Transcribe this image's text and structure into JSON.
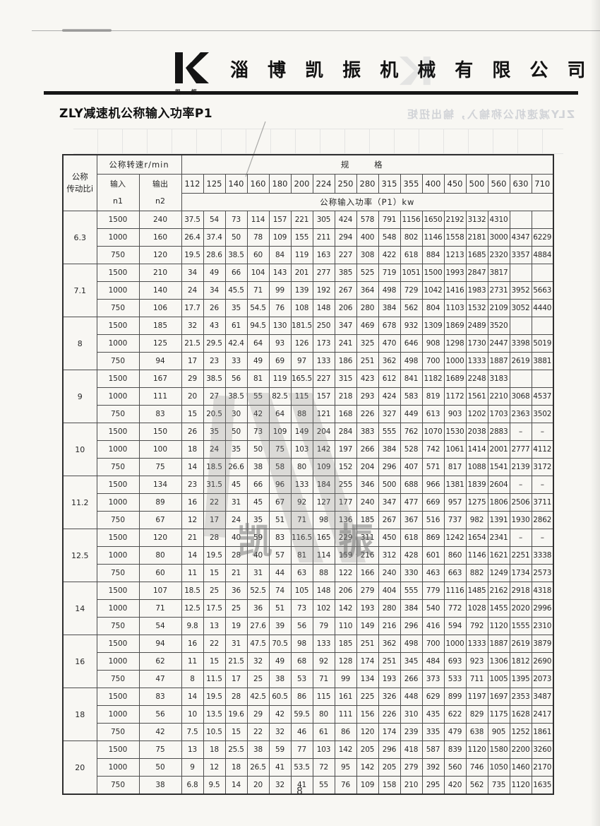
{
  "page": {
    "company_name": "淄 博 凯 振 机 械 有 限 公 司",
    "logo_caption": "凯 振",
    "title": "ZLY减速机公称输入功率P1",
    "ghost_title": "ZLY减速机公称输入，输出扭矩",
    "watermark_text": "凯 振",
    "page_number": "8",
    "colors": {
      "paper": "#f8f7f3",
      "ink": "#262626",
      "rule": "#161616",
      "watermark_grey": "#8a8a8a"
    }
  },
  "table": {
    "header": {
      "ratio_label_line1": "公称",
      "ratio_label_line2": "传动比i",
      "speed_label": "公称转速r/min",
      "spec_label": "规 格",
      "input_label": "输入",
      "input_sub": "n1",
      "output_label": "输出",
      "output_sub": "n2",
      "power_label": "公称输入功率（P1）kw",
      "sizes": [
        "112",
        "125",
        "140",
        "160",
        "180",
        "200",
        "224",
        "250",
        "280",
        "315",
        "355",
        "400",
        "450",
        "500",
        "560",
        "630",
        "710"
      ]
    },
    "blocks": [
      {
        "ratio": "6.3",
        "rows": [
          {
            "n1": "1500",
            "n2": "240",
            "values": [
              "37.5",
              "54",
              "73",
              "114",
              "157",
              "221",
              "305",
              "424",
              "578",
              "791",
              "1156",
              "1650",
              "2192",
              "3132",
              "4310",
              "",
              ""
            ]
          },
          {
            "n1": "1000",
            "n2": "160",
            "values": [
              "26.4",
              "37.4",
              "50",
              "78",
              "109",
              "155",
              "211",
              "294",
              "400",
              "548",
              "802",
              "1146",
              "1558",
              "2181",
              "3000",
              "4347",
              "6229"
            ]
          },
          {
            "n1": "750",
            "n2": "120",
            "values": [
              "19.5",
              "28.6",
              "38.5",
              "60",
              "84",
              "119",
              "163",
              "227",
              "308",
              "422",
              "618",
              "884",
              "1213",
              "1685",
              "2320",
              "3357",
              "4884"
            ]
          }
        ]
      },
      {
        "ratio": "7.1",
        "rows": [
          {
            "n1": "1500",
            "n2": "210",
            "values": [
              "34",
              "49",
              "66",
              "104",
              "143",
              "201",
              "277",
              "385",
              "525",
              "719",
              "1051",
              "1500",
              "1993",
              "2847",
              "3817",
              "",
              ""
            ]
          },
          {
            "n1": "1000",
            "n2": "140",
            "values": [
              "24",
              "34",
              "45.5",
              "71",
              "99",
              "139",
              "192",
              "267",
              "364",
              "498",
              "729",
              "1042",
              "1416",
              "1983",
              "2731",
              "3952",
              "5663"
            ]
          },
          {
            "n1": "750",
            "n2": "106",
            "values": [
              "17.7",
              "26",
              "35",
              "54.5",
              "76",
              "108",
              "148",
              "206",
              "280",
              "384",
              "562",
              "804",
              "1103",
              "1532",
              "2109",
              "3052",
              "4440"
            ]
          }
        ]
      },
      {
        "ratio": "8",
        "rows": [
          {
            "n1": "1500",
            "n2": "185",
            "values": [
              "32",
              "43",
              "61",
              "94.5",
              "130",
              "181.5",
              "250",
              "347",
              "469",
              "678",
              "932",
              "1309",
              "1869",
              "2489",
              "3520",
              "",
              ""
            ]
          },
          {
            "n1": "1000",
            "n2": "125",
            "values": [
              "21.5",
              "29.5",
              "42.4",
              "64",
              "93",
              "126",
              "173",
              "241",
              "325",
              "470",
              "646",
              "908",
              "1298",
              "1730",
              "2447",
              "3398",
              "5019"
            ]
          },
          {
            "n1": "750",
            "n2": "94",
            "values": [
              "17",
              "23",
              "33",
              "49",
              "69",
              "97",
              "133",
              "186",
              "251",
              "362",
              "498",
              "700",
              "1000",
              "1333",
              "1887",
              "2619",
              "3881"
            ]
          }
        ]
      },
      {
        "ratio": "9",
        "rows": [
          {
            "n1": "1500",
            "n2": "167",
            "values": [
              "29",
              "38.5",
              "56",
              "81",
              "119",
              "165.5",
              "227",
              "315",
              "423",
              "612",
              "841",
              "1182",
              "1689",
              "2248",
              "3183",
              "",
              ""
            ]
          },
          {
            "n1": "1000",
            "n2": "111",
            "values": [
              "20",
              "27",
              "38.5",
              "55",
              "82.5",
              "115",
              "157",
              "218",
              "293",
              "424",
              "583",
              "819",
              "1172",
              "1561",
              "2210",
              "3068",
              "4537"
            ]
          },
          {
            "n1": "750",
            "n2": "83",
            "values": [
              "15",
              "20.5",
              "30",
              "42",
              "64",
              "88",
              "121",
              "168",
              "226",
              "327",
              "449",
              "613",
              "903",
              "1202",
              "1703",
              "2363",
              "3502"
            ]
          }
        ]
      },
      {
        "ratio": "10",
        "rows": [
          {
            "n1": "1500",
            "n2": "150",
            "values": [
              "26",
              "35",
              "50",
              "73",
              "109",
              "149",
              "204",
              "284",
              "383",
              "555",
              "762",
              "1070",
              "1530",
              "2038",
              "2883",
              "–",
              "–"
            ]
          },
          {
            "n1": "1000",
            "n2": "100",
            "values": [
              "18",
              "24",
              "35",
              "50",
              "75",
              "103",
              "142",
              "197",
              "266",
              "384",
              "528",
              "742",
              "1061",
              "1414",
              "2001",
              "2777",
              "4112"
            ]
          },
          {
            "n1": "750",
            "n2": "75",
            "values": [
              "14",
              "18.5",
              "26.6",
              "38",
              "58",
              "80",
              "109",
              "152",
              "204",
              "296",
              "407",
              "571",
              "817",
              "1088",
              "1541",
              "2139",
              "3172"
            ]
          }
        ]
      },
      {
        "ratio": "11.2",
        "rows": [
          {
            "n1": "1500",
            "n2": "134",
            "values": [
              "23",
              "31.5",
              "45",
              "66",
              "96",
              "133",
              "184",
              "255",
              "346",
              "500",
              "688",
              "966",
              "1381",
              "1839",
              "2604",
              "–",
              "–"
            ]
          },
          {
            "n1": "1000",
            "n2": "89",
            "values": [
              "16",
              "22",
              "31",
              "45",
              "67",
              "92",
              "127",
              "177",
              "240",
              "347",
              "477",
              "669",
              "957",
              "1275",
              "1806",
              "2506",
              "3711"
            ]
          },
          {
            "n1": "750",
            "n2": "67",
            "values": [
              "12",
              "17",
              "24",
              "35",
              "51",
              "71",
              "98",
              "136",
              "185",
              "267",
              "367",
              "516",
              "737",
              "982",
              "1391",
              "1930",
              "2862"
            ]
          }
        ]
      },
      {
        "ratio": "12.5",
        "rows": [
          {
            "n1": "1500",
            "n2": "120",
            "values": [
              "21",
              "28",
              "40",
              "59",
              "83",
              "116.5",
              "165",
              "229",
              "311",
              "450",
              "618",
              "869",
              "1242",
              "1654",
              "2341",
              "–",
              "–"
            ]
          },
          {
            "n1": "1000",
            "n2": "80",
            "values": [
              "14",
              "19.5",
              "28",
              "40",
              "57",
              "81",
              "114",
              "159",
              "216",
              "312",
              "428",
              "601",
              "860",
              "1146",
              "1621",
              "2251",
              "3338"
            ]
          },
          {
            "n1": "750",
            "n2": "60",
            "values": [
              "11",
              "15",
              "21",
              "31",
              "44",
              "63",
              "88",
              "122",
              "166",
              "240",
              "330",
              "463",
              "663",
              "882",
              "1249",
              "1734",
              "2573"
            ]
          }
        ]
      },
      {
        "ratio": "14",
        "rows": [
          {
            "n1": "1500",
            "n2": "107",
            "values": [
              "18.5",
              "25",
              "36",
              "52.5",
              "74",
              "105",
              "148",
              "206",
              "279",
              "404",
              "555",
              "779",
              "1116",
              "1485",
              "2162",
              "2918",
              "4318"
            ]
          },
          {
            "n1": "1000",
            "n2": "71",
            "values": [
              "12.5",
              "17.5",
              "25",
              "36",
              "51",
              "73",
              "102",
              "142",
              "193",
              "280",
              "384",
              "540",
              "772",
              "1028",
              "1455",
              "2020",
              "2996"
            ]
          },
          {
            "n1": "750",
            "n2": "54",
            "values": [
              "9.8",
              "13",
              "19",
              "27.6",
              "39",
              "56",
              "79",
              "110",
              "149",
              "216",
              "296",
              "416",
              "594",
              "792",
              "1120",
              "1555",
              "2310"
            ]
          }
        ]
      },
      {
        "ratio": "16",
        "rows": [
          {
            "n1": "1500",
            "n2": "94",
            "values": [
              "16",
              "22",
              "31",
              "47.5",
              "70.5",
              "98",
              "133",
              "185",
              "251",
              "362",
              "498",
              "700",
              "1000",
              "1333",
              "1887",
              "2619",
              "3879"
            ]
          },
          {
            "n1": "1000",
            "n2": "62",
            "values": [
              "11",
              "15",
              "21.5",
              "32",
              "49",
              "68",
              "92",
              "128",
              "174",
              "251",
              "345",
              "484",
              "693",
              "923",
              "1306",
              "1812",
              "2690"
            ]
          },
          {
            "n1": "750",
            "n2": "47",
            "values": [
              "8",
              "11.5",
              "17",
              "25",
              "38",
              "53",
              "71",
              "99",
              "134",
              "193",
              "266",
              "373",
              "533",
              "711",
              "1005",
              "1395",
              "2073"
            ]
          }
        ]
      },
      {
        "ratio": "18",
        "rows": [
          {
            "n1": "1500",
            "n2": "83",
            "values": [
              "14",
              "19.5",
              "28",
              "42.5",
              "60.5",
              "86",
              "115",
              "161",
              "225",
              "326",
              "448",
              "629",
              "899",
              "1197",
              "1697",
              "2353",
              "3487"
            ]
          },
          {
            "n1": "1000",
            "n2": "56",
            "values": [
              "10",
              "13.5",
              "19.6",
              "29",
              "42",
              "59.5",
              "80",
              "111",
              "156",
              "226",
              "310",
              "435",
              "622",
              "829",
              "1175",
              "1628",
              "2417"
            ]
          },
          {
            "n1": "750",
            "n2": "42",
            "values": [
              "7.5",
              "10.5",
              "15",
              "22",
              "32",
              "46",
              "61",
              "86",
              "120",
              "174",
              "239",
              "335",
              "479",
              "638",
              "905",
              "1252",
              "1861"
            ]
          }
        ]
      },
      {
        "ratio": "20",
        "rows": [
          {
            "n1": "1500",
            "n2": "75",
            "values": [
              "13",
              "18",
              "25.5",
              "38",
              "59",
              "77",
              "103",
              "142",
              "205",
              "296",
              "418",
              "587",
              "839",
              "1120",
              "1580",
              "2200",
              "3260"
            ]
          },
          {
            "n1": "1000",
            "n2": "50",
            "values": [
              "9",
              "12",
              "18",
              "26.5",
              "41",
              "53.5",
              "72",
              "95",
              "142",
              "205",
              "279",
              "392",
              "560",
              "746",
              "1050",
              "1460",
              "2170"
            ]
          },
          {
            "n1": "750",
            "n2": "38",
            "values": [
              "6.8",
              "9.5",
              "14",
              "20",
              "32",
              "41",
              "55",
              "76",
              "109",
              "158",
              "210",
              "295",
              "420",
              "562",
              "735",
              "1120",
              "1635"
            ]
          }
        ]
      }
    ]
  }
}
